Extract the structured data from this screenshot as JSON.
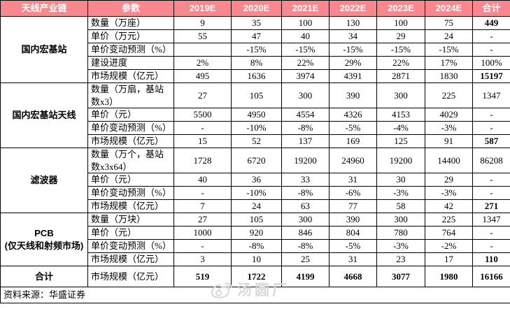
{
  "colors": {
    "header_bg": "#F8888E",
    "header_text": "#FFFFFF",
    "border": "#000000",
    "watermark": "#D9D9D9"
  },
  "table": {
    "header": {
      "columns": [
        "天线产业链",
        "参数",
        "2019E",
        "2020E",
        "2021E",
        "2022E",
        "2023E",
        "2024E",
        "合计"
      ]
    },
    "groups": [
      {
        "name_lines": [
          "国内宏基站"
        ],
        "rows": [
          {
            "param": "数量（万座）",
            "values": [
              "9",
              "35",
              "100",
              "130",
              "100",
              "75"
            ],
            "total": "449",
            "total_bold": true
          },
          {
            "param": "单价（万元）",
            "values": [
              "55",
              "47",
              "40",
              "34",
              "29",
              "24"
            ],
            "total": "-",
            "total_bold": false
          },
          {
            "param": "单价变动预测（%）",
            "values": [
              "",
              "-15%",
              "-15%",
              "-15%",
              "-15%",
              "-15%"
            ],
            "total": "-",
            "total_bold": false
          },
          {
            "param": "建设进度",
            "values": [
              "2%",
              "8%",
              "22%",
              "29%",
              "22%",
              "17%"
            ],
            "total": "100%",
            "total_bold": false
          },
          {
            "param": "市场规模（亿元）",
            "values": [
              "495",
              "1636",
              "3974",
              "4391",
              "2871",
              "1830"
            ],
            "total": "15197",
            "total_bold": true
          }
        ]
      },
      {
        "name_lines": [
          "国内宏基站天线"
        ],
        "rows": [
          {
            "param": "数量（万扇，基站数x3）",
            "values": [
              "27",
              "105",
              "300",
              "390",
              "300",
              "225"
            ],
            "total": "1347",
            "total_bold": false
          },
          {
            "param": "单价（元）",
            "values": [
              "5500",
              "4950",
              "4554",
              "4326",
              "4153",
              "4029"
            ],
            "total": "-",
            "total_bold": false
          },
          {
            "param": "单价变动预测（%）",
            "values": [
              "-",
              "-10%",
              "-8%",
              "-5%",
              "-4%",
              "-3%"
            ],
            "total": "-",
            "total_bold": false
          },
          {
            "param": "市场规模（亿元）",
            "values": [
              "15",
              "52",
              "137",
              "169",
              "125",
              "91"
            ],
            "total": "587",
            "total_bold": true
          }
        ]
      },
      {
        "name_lines": [
          "滤波器"
        ],
        "rows": [
          {
            "param": "数量（万个，基站数x3x64）",
            "values": [
              "1728",
              "6720",
              "19200",
              "24960",
              "19200",
              "14400"
            ],
            "total": "86208",
            "total_bold": false
          },
          {
            "param": "单价（元）",
            "values": [
              "40",
              "36",
              "33",
              "31",
              "30",
              "29"
            ],
            "total": "-",
            "total_bold": false
          },
          {
            "param": "单价变动预测（%）",
            "values": [
              "-",
              "-10%",
              "-8%",
              "-6%",
              "-3%",
              "-3%"
            ],
            "total": "-",
            "total_bold": false
          },
          {
            "param": "市场规模（亿元）",
            "values": [
              "7",
              "24",
              "63",
              "77",
              "58",
              "42"
            ],
            "total": "271",
            "total_bold": true
          }
        ]
      },
      {
        "name_lines": [
          "PCB",
          "(仅天线和射频市场)"
        ],
        "rows": [
          {
            "param": "数量（万块）",
            "values": [
              "27",
              "105",
              "300",
              "390",
              "300",
              "225"
            ],
            "total": "1347",
            "total_bold": false
          },
          {
            "param": "单价（元）",
            "values": [
              "1000",
              "920",
              "846",
              "804",
              "780",
              "764"
            ],
            "total": "-",
            "total_bold": false
          },
          {
            "param": "单价变动预测（%）",
            "values": [
              "-",
              "-8%",
              "-8%",
              "-5%",
              "-3%",
              "-2%"
            ],
            "total": "-",
            "total_bold": false
          },
          {
            "param": "市场规模（亿元）",
            "values": [
              "3",
              "10",
              "25",
              "31",
              "23",
              "17"
            ],
            "total": "110",
            "total_bold": true
          }
        ]
      }
    ],
    "summary": {
      "name": "合计",
      "param": "市场规模（亿元）",
      "values": [
        "519",
        "1722",
        "4199",
        "4668",
        "3077",
        "1980"
      ],
      "total": "16166"
    },
    "footer": {
      "source": "资料来源：华盛证券"
    }
  },
  "watermark": {
    "text": "汤圆厂"
  }
}
